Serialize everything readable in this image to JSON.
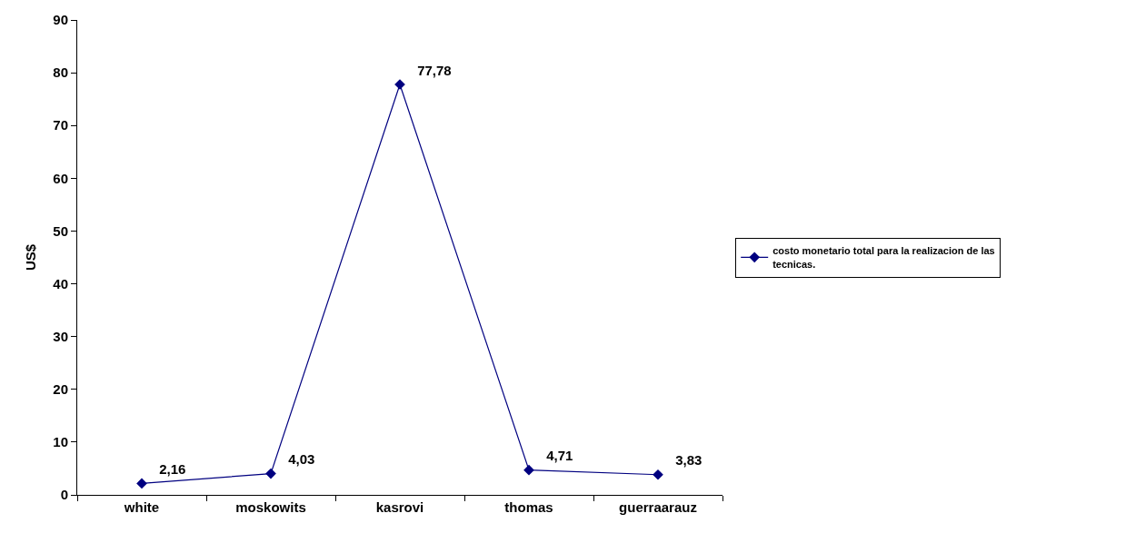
{
  "chart_data": {
    "type": "line",
    "ylabel": "US$",
    "categories": [
      "white",
      "moskowits",
      "kasrovi",
      "thomas",
      "guerraarauz"
    ],
    "series": [
      {
        "name": "costo monetario total para la realizacion de las tecnicas.",
        "color": "#000080",
        "values": [
          2.16,
          4.03,
          77.78,
          4.71,
          3.83
        ],
        "value_labels": [
          "2,16",
          "4,03",
          "77,78",
          "4,71",
          "3,83"
        ]
      }
    ],
    "ylim": [
      0,
      90
    ],
    "yticks": [
      0,
      10,
      20,
      30,
      40,
      50,
      60,
      70,
      80,
      90
    ],
    "marker": "diamond",
    "line_style": "solid",
    "legend": "right"
  }
}
